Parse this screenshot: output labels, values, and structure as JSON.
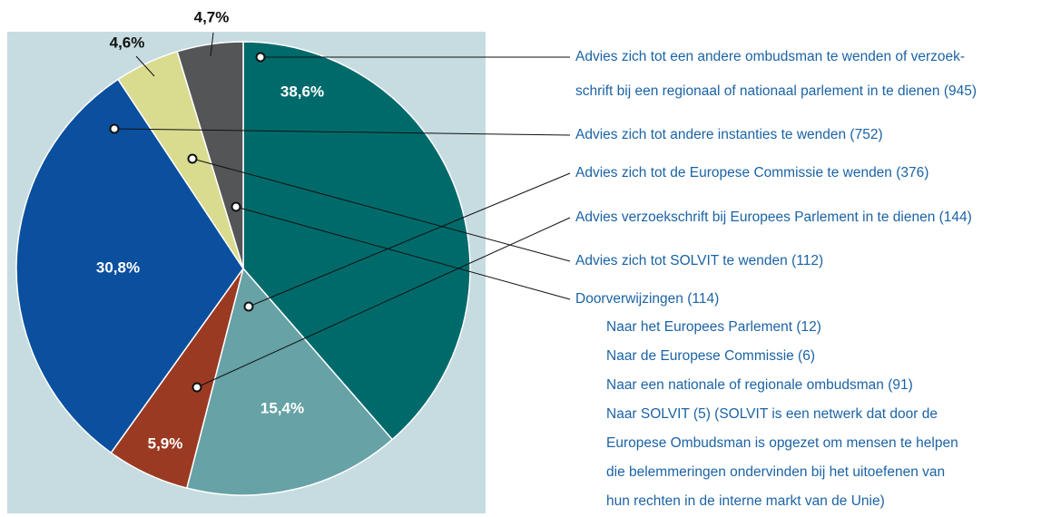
{
  "chart_data": {
    "type": "pie",
    "categories": [
      [
        "Advies zich tot een andere ombudsman te wenden of verzoek-",
        "schrift bij een regionaal of nationaal parlement in te dienen (945)"
      ],
      "Advies zich tot de Europese Commissie te wenden (376)",
      "Advies verzoekschrift bij Europees Parlement in te dienen (144)",
      "Advies zich tot andere instanties te wenden (752)",
      "Advies zich tot SOLVIT te wenden (112)",
      "Doorverwijzingen (114)"
    ],
    "values": [
      38.6,
      15.4,
      5.9,
      30.8,
      4.6,
      4.7
    ],
    "value_labels": [
      "38,6%",
      "15,4%",
      "5,9%",
      "30,8%",
      "4,6%",
      "4,7%"
    ],
    "colors": [
      "#006a6b",
      "#66a2a6",
      "#9b3a22",
      "#0b4f9f",
      "#d9dc8f",
      "#545556"
    ],
    "details": [
      "Naar het Europees Parlement (12)",
      "Naar de Europese Commissie (6)",
      "Naar een nationale of regionale ombudsman (91)",
      "Naar SOLVIT (5) (SOLVIT is een netwerk dat door de",
      "Europese Ombudsman is opgezet om mensen te helpen",
      "die belemmeringen ondervinden bij het uitoefenen van",
      "hun rechten in de interne markt van de Unie)"
    ]
  }
}
